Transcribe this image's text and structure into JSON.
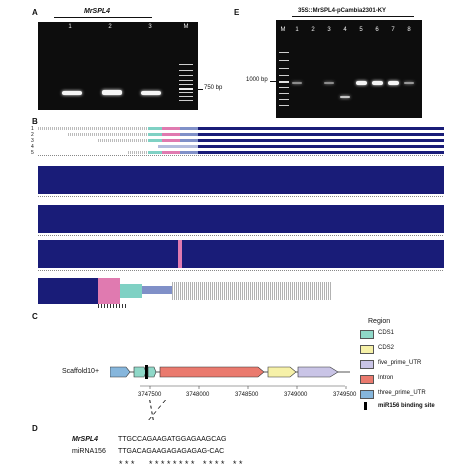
{
  "panelA": {
    "letter": "A",
    "title": "MrSPL4",
    "lanes": [
      "1",
      "2",
      "3",
      "M"
    ],
    "marker": "750 bp"
  },
  "panelE": {
    "letter": "E",
    "title": "35S::MrSPL4-pCambia2301-KY",
    "lanes": [
      "M",
      "1",
      "2",
      "3",
      "4",
      "5",
      "6",
      "7",
      "8"
    ],
    "marker": "1000 bp"
  },
  "panelB": {
    "letter": "B",
    "row_numbers": [
      "1",
      "2",
      "3",
      "4",
      "5"
    ]
  },
  "panelC": {
    "letter": "C",
    "scaffold": "Scaffold10+",
    "ticks": [
      "3747500",
      "3748000",
      "3748500",
      "3749000",
      "3749500"
    ],
    "legend_title": "Region",
    "legend": [
      {
        "label": "CDS1",
        "color": "#8fd8c8"
      },
      {
        "label": "CDS2",
        "color": "#f6f1a8"
      },
      {
        "label": "five_prime_UTR",
        "color": "#c9c4e6"
      },
      {
        "label": "Intron",
        "color": "#ea7a6e"
      },
      {
        "label": "three_prime_UTR",
        "color": "#86b6dc"
      },
      {
        "label": "miR156 binding site",
        "color": "#000000"
      }
    ]
  },
  "panelD": {
    "letter": "D",
    "label1": "MrSPL4",
    "seq1": "TTGCCAGAAGATGGAGAAGCAG",
    "label2": "miRNA156",
    "seq2": "TTGACAGAAGAGAGAGAG-CAC",
    "match": "***  ******** **** **"
  }
}
